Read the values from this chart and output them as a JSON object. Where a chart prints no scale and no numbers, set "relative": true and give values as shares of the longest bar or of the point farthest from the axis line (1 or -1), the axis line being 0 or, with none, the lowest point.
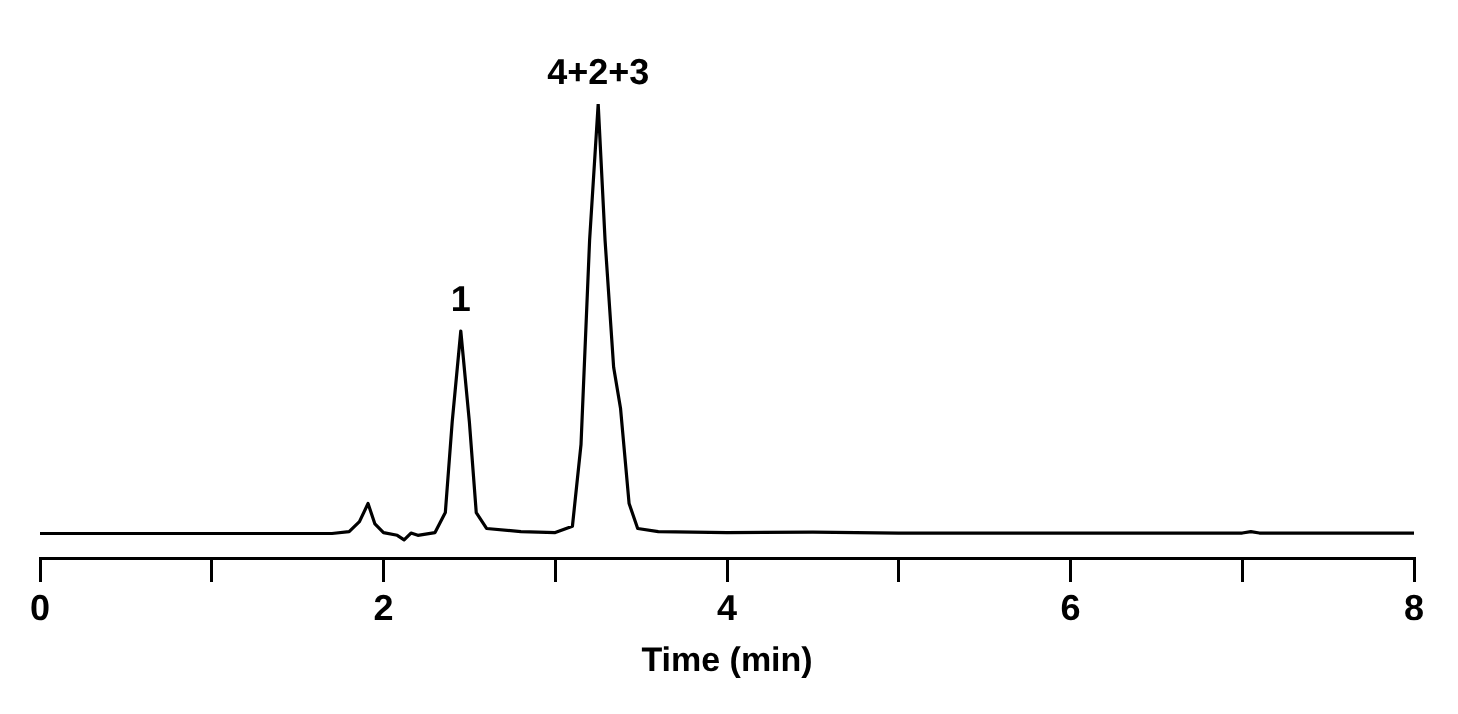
{
  "chart_data": {
    "type": "line",
    "relative": true,
    "xlabel": "Time (min)",
    "xlim": [
      0,
      8
    ],
    "xticks": [
      0,
      {
        "value": 1,
        "label": null
      },
      2,
      {
        "value": 3,
        "label": null
      },
      4,
      {
        "value": 5,
        "label": null
      },
      6,
      {
        "value": 7,
        "label": null
      },
      8
    ],
    "grid": false,
    "legend": false,
    "marker": "none",
    "line_style": "solid",
    "annotations": [
      {
        "text": "1",
        "x": 2.45,
        "y": 0.5
      },
      {
        "text": "4+2+3",
        "x": 3.25,
        "y": 1
      }
    ],
    "series": [
      {
        "color": "#000000",
        "x": [
          0,
          1.7,
          1.8,
          1.86,
          1.91,
          1.95,
          2.0,
          2.08,
          2.12,
          2.16,
          2.2,
          2.3,
          2.36,
          2.4,
          2.45,
          2.5,
          2.54,
          2.6,
          2.8,
          3.0,
          3.1,
          3.15,
          3.2,
          3.25,
          3.29,
          3.34,
          3.38,
          3.43,
          3.48,
          3.6,
          4.0,
          4.5,
          5.0,
          7.0,
          7.05,
          7.1,
          8.0
        ],
        "values": [
          0.054,
          0.054,
          0.058,
          0.08,
          0.12,
          0.075,
          0.056,
          0.05,
          0.04,
          0.055,
          0.05,
          0.056,
          0.1,
          0.3,
          0.5,
          0.3,
          0.1,
          0.065,
          0.058,
          0.056,
          0.07,
          0.25,
          0.7,
          1.0,
          0.7,
          0.42,
          0.33,
          0.12,
          0.065,
          0.058,
          0.056,
          0.057,
          0.055,
          0.055,
          0.058,
          0.055,
          0.055
        ]
      }
    ]
  }
}
